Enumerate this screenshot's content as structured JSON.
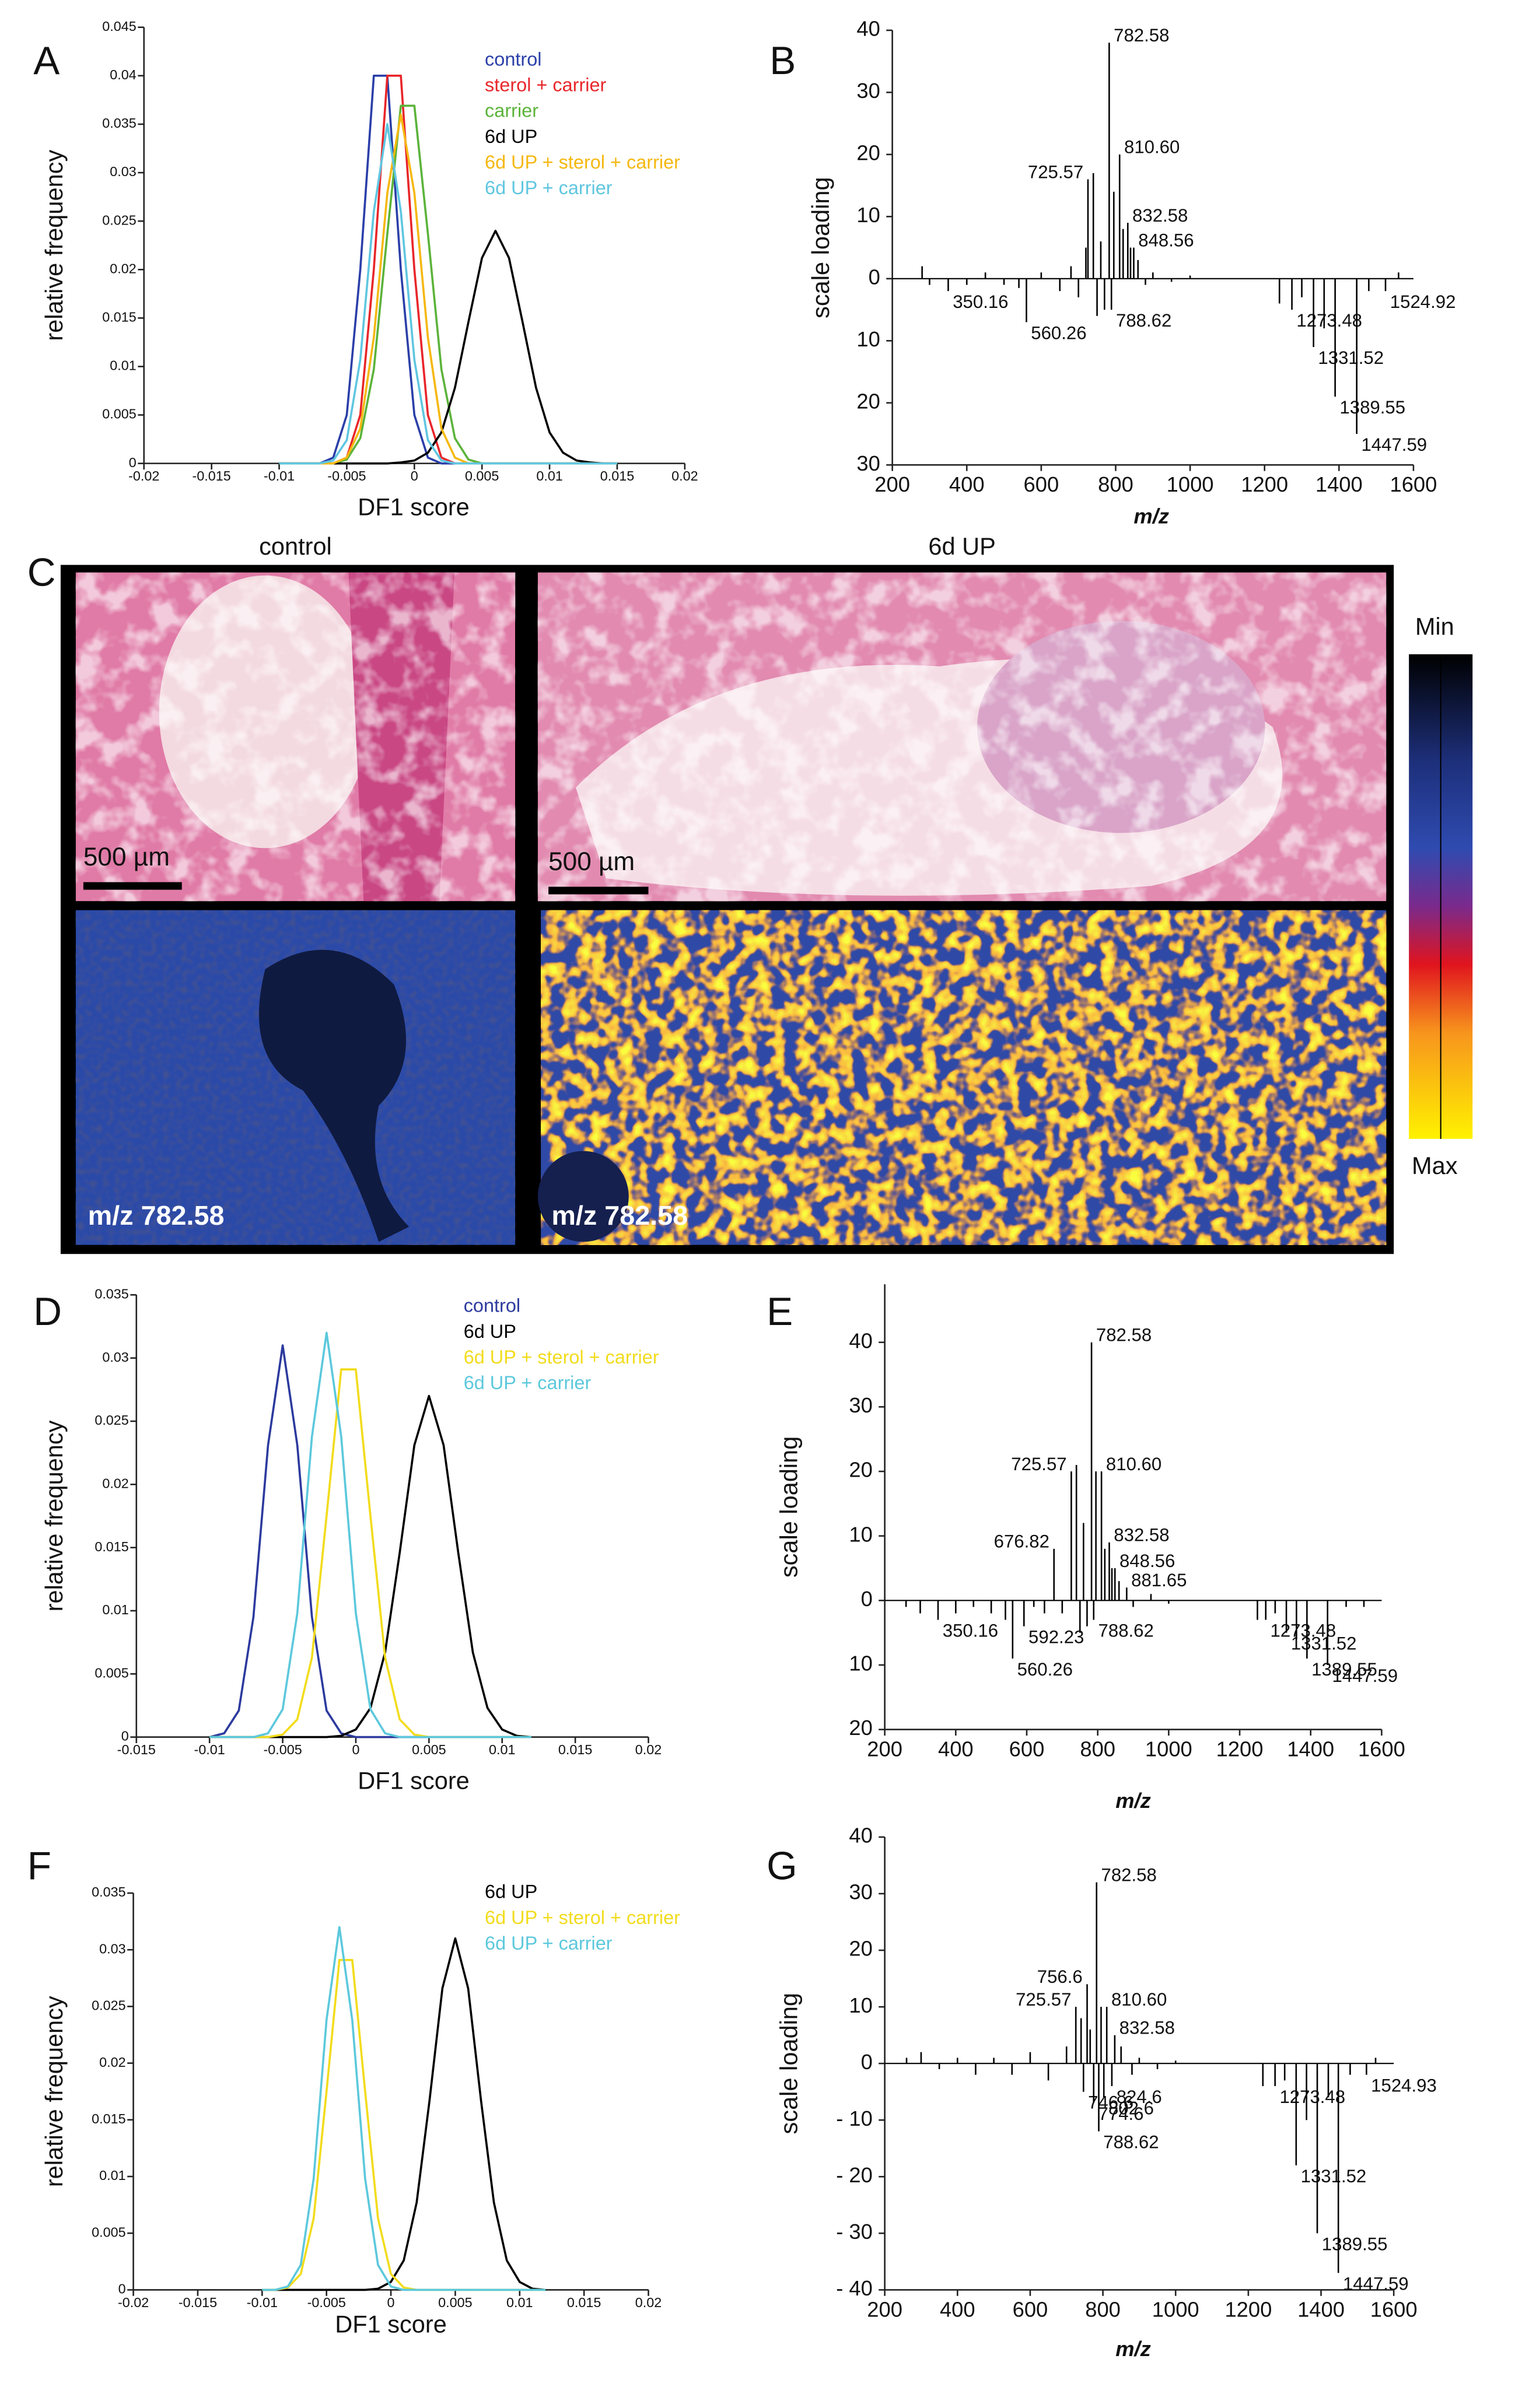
{
  "chart_data": [
    {
      "type": "line",
      "panel": "A",
      "xlabel": "DF1 score",
      "ylabel": "relative frequency",
      "xlim": [
        -0.02,
        0.02
      ],
      "xticks": [
        -0.02,
        -0.015,
        -0.01,
        -0.005,
        0,
        0.005,
        0.01,
        0.015,
        0.02
      ],
      "ylim": [
        0,
        0.045
      ],
      "yticks": [
        0,
        0.005,
        0.01,
        0.015,
        0.02,
        0.025,
        0.03,
        0.035,
        0.04,
        0.045
      ],
      "x": [
        -0.01,
        -0.009,
        -0.008,
        -0.007,
        -0.006,
        -0.005,
        -0.004,
        -0.003,
        -0.002,
        -0.001,
        0,
        0.001,
        0.002,
        0.003,
        0.004,
        0.005,
        0.006,
        0.007,
        0.008,
        0.009,
        0.01,
        0.011,
        0.012,
        0.013,
        0.014,
        0.015
      ],
      "series": [
        {
          "name": "control",
          "color": "#2b3fa8",
          "values": [
            0,
            0,
            0,
            0,
            0.0006,
            0.005,
            0.02,
            0.04,
            0.04,
            0.02,
            0.005,
            0.0006,
            0,
            0,
            0,
            0,
            0,
            0,
            0,
            0,
            0,
            0,
            0,
            0,
            0,
            0
          ]
        },
        {
          "name": "sterol + carrier",
          "color": "#e8262a",
          "values": [
            0,
            0,
            0,
            0,
            0,
            0.0006,
            0.005,
            0.02,
            0.04,
            0.04,
            0.02,
            0.005,
            0.0006,
            0,
            0,
            0,
            0,
            0,
            0,
            0,
            0,
            0,
            0,
            0,
            0,
            0
          ]
        },
        {
          "name": "carrier",
          "color": "#5bb33a",
          "values": [
            0,
            0,
            0,
            0,
            0,
            0.0004,
            0.0026,
            0.0097,
            0.0237,
            0.0369,
            0.0369,
            0.0237,
            0.0097,
            0.0026,
            0.0004,
            0,
            0,
            0,
            0,
            0,
            0,
            0,
            0,
            0,
            0,
            0
          ]
        },
        {
          "name": "6d UP",
          "color": "#000000",
          "values": [
            0,
            0,
            0,
            0,
            0,
            0,
            0,
            0,
            0,
            0.0001,
            0.0003,
            0.0011,
            0.0032,
            0.0078,
            0.0146,
            0.0212,
            0.024,
            0.0212,
            0.0146,
            0.0078,
            0.0032,
            0.0011,
            0.0003,
            0.0001,
            0,
            0
          ]
        },
        {
          "name": "6d UP + sterol + carrier",
          "color": "#f5b80f",
          "values": [
            0,
            0,
            0,
            0,
            0,
            0.0006,
            0.0036,
            0.013,
            0.0279,
            0.036,
            0.0279,
            0.013,
            0.0036,
            0.0006,
            0,
            0,
            0,
            0,
            0,
            0,
            0,
            0,
            0,
            0,
            0,
            0
          ]
        },
        {
          "name": "6d UP + carrier",
          "color": "#5fc6e0",
          "values": [
            0,
            0,
            0,
            0,
            0.0003,
            0.0024,
            0.0107,
            0.026,
            0.035,
            0.026,
            0.0107,
            0.0024,
            0.0003,
            0,
            0,
            0,
            0,
            0,
            0,
            0,
            0,
            0,
            0,
            0,
            0,
            0
          ]
        }
      ]
    },
    {
      "type": "spectrum",
      "panel": "B",
      "xlabel": "m/z",
      "ylabel": "scale loading",
      "color": "#000000",
      "xlim": [
        200,
        1600
      ],
      "xticks": [
        200,
        400,
        600,
        800,
        1000,
        1200,
        1400,
        1600
      ],
      "ylim": [
        -30,
        40
      ],
      "yticks": [
        40,
        30,
        20,
        10,
        0,
        {
          "value": -10,
          "label": "10"
        },
        {
          "value": -20,
          "label": "20"
        },
        {
          "value": -30,
          "label": "30"
        }
      ],
      "x": [
        280,
        300,
        350.16,
        400,
        450,
        500,
        540,
        560.26,
        600,
        650,
        680,
        700,
        720,
        725.57,
        740,
        750,
        760,
        770,
        782.58,
        788.62,
        795,
        810.6,
        820,
        832.58,
        840,
        848.56,
        860,
        880,
        900,
        950,
        1000,
        1240,
        1273.48,
        1300,
        1331.52,
        1360,
        1389.55,
        1447.59,
        1480,
        1524.92,
        1560
      ],
      "values": [
        2,
        -1,
        -2,
        -1,
        1,
        -1,
        -1.5,
        -7,
        1,
        -2,
        2,
        -3,
        5,
        16,
        17,
        -6,
        6,
        -5,
        38,
        -5,
        14,
        20,
        8,
        9,
        5,
        5,
        3,
        -1,
        1,
        -0.5,
        0.5,
        -4,
        -5,
        -3,
        -11,
        -8,
        -19,
        -25,
        -2,
        -2,
        1
      ],
      "labels": [
        null,
        null,
        "350.16",
        null,
        null,
        null,
        null,
        "560.26",
        null,
        null,
        null,
        null,
        null,
        "725.57",
        null,
        null,
        null,
        null,
        "782.58",
        "788.62",
        null,
        "810.60",
        null,
        "832.58",
        null,
        "848.56",
        null,
        null,
        null,
        null,
        null,
        null,
        "1273.48",
        null,
        "1331.52",
        null,
        "1389.55",
        "1447.59",
        null,
        "1524.92",
        null
      ]
    },
    {
      "type": "line",
      "panel": "D",
      "xlabel": "DF1 score",
      "ylabel": "relative frequency",
      "xlim": [
        -0.015,
        0.02
      ],
      "xticks": [
        -0.015,
        -0.01,
        -0.005,
        0,
        0.005,
        0.01,
        0.015,
        0.02
      ],
      "ylim": [
        0,
        0.035
      ],
      "yticks": [
        0,
        0.005,
        0.01,
        0.015,
        0.02,
        0.025,
        0.03,
        0.035
      ],
      "x": [
        -0.01,
        -0.009,
        -0.008,
        -0.007,
        -0.006,
        -0.005,
        -0.004,
        -0.003,
        -0.002,
        -0.001,
        0,
        0.001,
        0.002,
        0.003,
        0.004,
        0.005,
        0.006,
        0.007,
        0.008,
        0.009,
        0.01,
        0.011,
        0.012
      ],
      "series": [
        {
          "name": "control",
          "color": "#2c3a9e",
          "values": [
            0,
            0.0003,
            0.0021,
            0.0095,
            0.0231,
            0.031,
            0.0231,
            0.0095,
            0.0021,
            0.0003,
            0,
            0,
            0,
            0,
            0,
            0,
            0,
            0,
            0,
            0,
            0,
            0,
            0
          ]
        },
        {
          "name": "6d UP",
          "color": "#000000",
          "values": [
            0,
            0,
            0,
            0,
            0,
            0,
            0,
            0,
            0,
            0.0001,
            0.0006,
            0.0023,
            0.0067,
            0.0146,
            0.0231,
            0.027,
            0.0231,
            0.0146,
            0.0067,
            0.0023,
            0.0006,
            0.0001,
            0
          ]
        },
        {
          "name": "6d UP + sterol + carrier",
          "color": "#f2dc1c",
          "values": [
            0,
            0,
            0,
            0,
            0,
            0.0002,
            0.0014,
            0.0063,
            0.0175,
            0.0291,
            0.0291,
            0.0175,
            0.0063,
            0.0014,
            0.0002,
            0,
            0,
            0,
            0,
            0,
            0,
            0,
            0
          ]
        },
        {
          "name": "6d UP + carrier",
          "color": "#5cc8dc",
          "values": [
            0,
            0,
            0,
            0,
            0.0003,
            0.0022,
            0.0098,
            0.0238,
            0.032,
            0.0238,
            0.0098,
            0.0022,
            0.0003,
            0,
            0,
            0,
            0,
            0,
            0,
            0,
            0,
            0,
            0
          ]
        }
      ]
    },
    {
      "type": "spectrum",
      "panel": "E",
      "xlabel": "m/z",
      "ylabel": "scale loading",
      "color": "#000000",
      "xlim": [
        200,
        1600
      ],
      "xticks": [
        200,
        400,
        600,
        800,
        1000,
        1200,
        1400,
        1600
      ],
      "ylim": [
        -20,
        49
      ],
      "yticks": [
        40,
        30,
        20,
        10,
        0,
        {
          "value": -10,
          "label": "10"
        },
        {
          "value": -20,
          "label": "20"
        }
      ],
      "x": [
        260,
        300,
        350.16,
        400,
        450,
        500,
        540,
        560.26,
        592.23,
        620,
        650,
        676.82,
        700,
        725.57,
        740,
        750,
        760,
        770,
        782.58,
        788.62,
        795,
        810.6,
        820,
        832.58,
        840,
        848.56,
        860,
        881.65,
        900,
        950,
        1000,
        1250,
        1273.48,
        1300,
        1331.52,
        1360,
        1389.55,
        1447.59,
        1500,
        1550
      ],
      "values": [
        -1,
        -2,
        -3,
        -2,
        -1,
        -2,
        -3,
        -9,
        -4,
        -1,
        -2,
        8,
        -2,
        20,
        21,
        -5,
        12,
        -4,
        40,
        -3,
        20,
        20,
        8,
        9,
        5,
        5,
        3,
        2,
        -1,
        1,
        -0.5,
        -3,
        -3,
        -2,
        -5,
        -6,
        -9,
        -10,
        -1,
        -1
      ],
      "labels": [
        null,
        null,
        "350.16",
        null,
        null,
        null,
        null,
        "560.26",
        "592.23",
        null,
        null,
        "676.82",
        null,
        "725.57",
        null,
        null,
        null,
        null,
        "782.58",
        "788.62",
        null,
        "810.60",
        null,
        "832.58",
        null,
        "848.56",
        null,
        "881.65",
        null,
        null,
        null,
        null,
        "1273.48",
        null,
        "1331.52",
        null,
        "1389.55",
        "1447.59",
        null,
        null
      ]
    },
    {
      "type": "line",
      "panel": "F",
      "xlabel": "DF1 score",
      "ylabel": "relative frequency",
      "xlim": [
        -0.02,
        0.02
      ],
      "xticks": [
        -0.02,
        -0.015,
        -0.01,
        -0.005,
        0,
        0.005,
        0.01,
        0.015,
        0.02
      ],
      "ylim": [
        0,
        0.035
      ],
      "yticks": [
        0,
        0.005,
        0.01,
        0.015,
        0.02,
        0.025,
        0.03,
        0.035
      ],
      "x": [
        -0.01,
        -0.009,
        -0.008,
        -0.007,
        -0.006,
        -0.005,
        -0.004,
        -0.003,
        -0.002,
        -0.001,
        0,
        0.001,
        0.002,
        0.003,
        0.004,
        0.005,
        0.006,
        0.007,
        0.008,
        0.009,
        0.01,
        0.011,
        0.012
      ],
      "series": [
        {
          "name": "6d UP",
          "color": "#000000",
          "values": [
            0,
            0,
            0,
            0,
            0,
            0,
            0,
            0,
            0,
            0.0001,
            0.0007,
            0.0026,
            0.0077,
            0.0167,
            0.0266,
            0.031,
            0.0266,
            0.0167,
            0.0077,
            0.0026,
            0.0007,
            0.0001,
            0
          ]
        },
        {
          "name": "6d UP + sterol + carrier",
          "color": "#f2dc1c",
          "values": [
            0,
            0,
            0.0002,
            0.0014,
            0.0063,
            0.0175,
            0.0291,
            0.0291,
            0.0175,
            0.0063,
            0.0014,
            0.0002,
            0,
            0,
            0,
            0,
            0,
            0,
            0,
            0,
            0,
            0,
            0
          ]
        },
        {
          "name": "6d UP + carrier",
          "color": "#5cc8dc",
          "values": [
            0,
            0,
            0.0003,
            0.0022,
            0.0098,
            0.0238,
            0.032,
            0.0238,
            0.0098,
            0.0022,
            0.0003,
            0,
            0,
            0,
            0,
            0,
            0,
            0,
            0,
            0,
            0,
            0,
            0
          ]
        }
      ]
    },
    {
      "type": "spectrum",
      "panel": "G",
      "xlabel": "m/z",
      "ylabel": "scale loading",
      "color": "#000000",
      "xlim": [
        200,
        1600
      ],
      "xticks": [
        200,
        400,
        600,
        800,
        1000,
        1200,
        1400,
        1600
      ],
      "ylim": [
        -40,
        40
      ],
      "yticks": [
        40,
        30,
        20,
        10,
        0,
        {
          "value": -10,
          "label": "- 10"
        },
        {
          "value": -20,
          "label": "- 20"
        },
        {
          "value": -30,
          "label": "- 30"
        },
        {
          "value": -40,
          "label": "- 40"
        }
      ],
      "x": [
        260,
        300,
        350,
        400,
        450,
        500,
        550,
        600,
        650,
        700,
        725.57,
        740,
        746.6,
        756.6,
        765,
        774.6,
        782.58,
        788.62,
        795,
        802.6,
        810.6,
        824.6,
        832.58,
        850,
        880,
        900,
        950,
        1000,
        1240,
        1273.48,
        1300,
        1331.52,
        1360,
        1389.55,
        1420,
        1447.59,
        1480,
        1524.93,
        1550
      ],
      "values": [
        1,
        2,
        -1,
        1,
        -2,
        1,
        -2,
        2,
        -3,
        3,
        10,
        8,
        -5,
        14,
        6,
        -7,
        32,
        -12,
        10,
        -6,
        10,
        -4,
        5,
        3,
        -2,
        1,
        -1,
        0.5,
        -4,
        -4,
        -3,
        -18,
        -10,
        -30,
        -6,
        -37,
        -2,
        -2,
        1
      ],
      "labels": [
        null,
        null,
        null,
        null,
        null,
        null,
        null,
        null,
        null,
        null,
        "725.57",
        null,
        "746.6",
        "756.6",
        null,
        "774.6",
        "782.58",
        "788.62",
        null,
        "802.6",
        "810.60",
        "824.6",
        "832.58",
        null,
        null,
        null,
        null,
        null,
        null,
        "1273.48",
        null,
        "1331.52",
        null,
        "1389.55",
        null,
        "1447.59",
        null,
        "1524.93",
        null
      ]
    }
  ],
  "panel_c": {
    "panel": "C",
    "left_title": "control",
    "right_title": "6d UP",
    "scale_bar": [
      "500 µm",
      "500 µm"
    ],
    "ion_label": [
      "m/z 782.58",
      "m/z 782.58"
    ],
    "colorbar": {
      "min": "Min",
      "max": "Max"
    }
  }
}
